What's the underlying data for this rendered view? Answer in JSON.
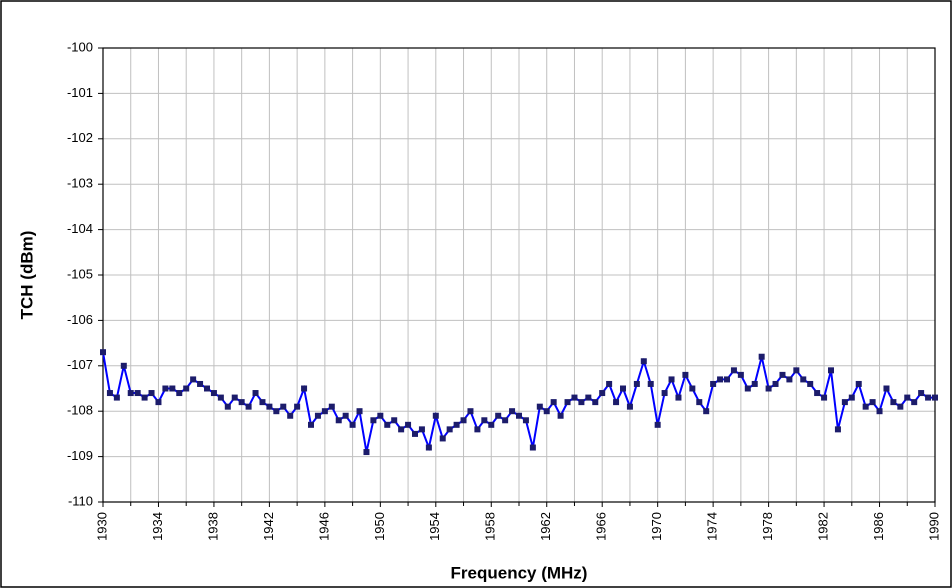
{
  "chart_data": {
    "type": "line",
    "ylabel": "TCH (dBm)",
    "xlabel": "Frequency (MHz)",
    "xlim": [
      1930,
      1990
    ],
    "xticks": [
      1930,
      1934,
      1938,
      1942,
      1946,
      1950,
      1954,
      1958,
      1962,
      1966,
      1970,
      1974,
      1978,
      1982,
      1986,
      1990
    ],
    "xminorticks": [
      1932,
      1936,
      1940,
      1944,
      1948,
      1952,
      1956,
      1960,
      1964,
      1968,
      1972,
      1976,
      1980,
      1984,
      1988
    ],
    "ylim": [
      -110,
      -100
    ],
    "yticks": [
      -110,
      -109,
      -108,
      -107,
      -106,
      -105,
      -104,
      -103,
      -102,
      -101,
      -100
    ],
    "grid": true,
    "series": [
      {
        "color": "#0000ff",
        "marker_color": "#1c1c6b",
        "x": [
          1930,
          1930.5,
          1931,
          1931.5,
          1932,
          1932.5,
          1933,
          1933.5,
          1934,
          1934.5,
          1935,
          1935.5,
          1936,
          1936.5,
          1937,
          1937.5,
          1938,
          1938.5,
          1939,
          1939.5,
          1940,
          1940.5,
          1941,
          1941.5,
          1942,
          1942.5,
          1943,
          1943.5,
          1944,
          1944.5,
          1945,
          1945.5,
          1946,
          1946.5,
          1947,
          1947.5,
          1948,
          1948.5,
          1949,
          1949.5,
          1950,
          1950.5,
          1951,
          1951.5,
          1952,
          1952.5,
          1953,
          1953.5,
          1954,
          1954.5,
          1955,
          1955.5,
          1956,
          1956.5,
          1957,
          1957.5,
          1958,
          1958.5,
          1959,
          1959.5,
          1960,
          1960.5,
          1961,
          1961.5,
          1962,
          1962.5,
          1963,
          1963.5,
          1964,
          1964.5,
          1965,
          1965.5,
          1966,
          1966.5,
          1967,
          1967.5,
          1968,
          1968.5,
          1969,
          1969.5,
          1970,
          1970.5,
          1971,
          1971.5,
          1972,
          1972.5,
          1973,
          1973.5,
          1974,
          1974.5,
          1975,
          1975.5,
          1976,
          1976.5,
          1977,
          1977.5,
          1978,
          1978.5,
          1979,
          1979.5,
          1980,
          1980.5,
          1981,
          1981.5,
          1982,
          1982.5,
          1983,
          1983.5,
          1984,
          1984.5,
          1985,
          1985.5,
          1986,
          1986.5,
          1987,
          1987.5,
          1988,
          1988.5,
          1989,
          1989.5,
          1990
        ],
        "values": [
          -106.7,
          -107.6,
          -107.7,
          -107.0,
          -107.6,
          -107.6,
          -107.7,
          -107.6,
          -107.8,
          -107.5,
          -107.5,
          -107.6,
          -107.5,
          -107.3,
          -107.4,
          -107.5,
          -107.6,
          -107.7,
          -107.9,
          -107.7,
          -107.8,
          -107.9,
          -107.6,
          -107.8,
          -107.9,
          -108.0,
          -107.9,
          -108.1,
          -107.9,
          -107.5,
          -108.3,
          -108.1,
          -108.0,
          -107.9,
          -108.2,
          -108.1,
          -108.3,
          -108.0,
          -108.9,
          -108.2,
          -108.1,
          -108.3,
          -108.2,
          -108.4,
          -108.3,
          -108.5,
          -108.4,
          -108.8,
          -108.1,
          -108.6,
          -108.4,
          -108.3,
          -108.2,
          -108.0,
          -108.4,
          -108.2,
          -108.3,
          -108.1,
          -108.2,
          -108.0,
          -108.1,
          -108.2,
          -108.8,
          -107.9,
          -108.0,
          -107.8,
          -108.1,
          -107.8,
          -107.7,
          -107.8,
          -107.7,
          -107.8,
          -107.6,
          -107.4,
          -107.8,
          -107.5,
          -107.9,
          -107.4,
          -106.9,
          -107.4,
          -108.3,
          -107.6,
          -107.3,
          -107.7,
          -107.2,
          -107.5,
          -107.8,
          -108.0,
          -107.4,
          -107.3,
          -107.3,
          -107.1,
          -107.2,
          -107.5,
          -107.4,
          -106.8,
          -107.5,
          -107.4,
          -107.2,
          -107.3,
          -107.1,
          -107.3,
          -107.4,
          -107.6,
          -107.7,
          -107.1,
          -108.4,
          -107.8,
          -107.7,
          -107.4,
          -107.9,
          -107.8,
          -108.0,
          -107.5,
          -107.8,
          -107.9,
          -107.7,
          -107.8,
          -107.6,
          -107.7,
          -107.7
        ]
      }
    ]
  }
}
